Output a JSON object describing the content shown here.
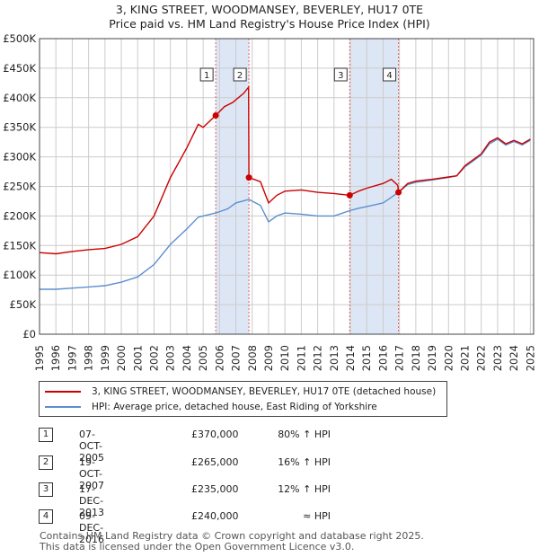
{
  "title_line1": "3, KING STREET, WOODMANSEY, BEVERLEY, HU17 0TE",
  "title_line2": "Price paid vs. HM Land Registry's House Price Index (HPI)",
  "colors": {
    "price": "#cc0000",
    "hpi": "#5b8fcf",
    "shade": "#dde6f5",
    "grid": "#cccccc",
    "vline": "#e06060"
  },
  "chart_data": {
    "type": "line",
    "xlim": [
      1995,
      2025.2
    ],
    "ylim": [
      0,
      500000
    ],
    "yticks": [
      {
        "v": 0,
        "label": "£0"
      },
      {
        "v": 50000,
        "label": "£50K"
      },
      {
        "v": 100000,
        "label": "£100K"
      },
      {
        "v": 150000,
        "label": "£150K"
      },
      {
        "v": 200000,
        "label": "£200K"
      },
      {
        "v": 250000,
        "label": "£250K"
      },
      {
        "v": 300000,
        "label": "£300K"
      },
      {
        "v": 350000,
        "label": "£350K"
      },
      {
        "v": 400000,
        "label": "£400K"
      },
      {
        "v": 450000,
        "label": "£450K"
      },
      {
        "v": 500000,
        "label": "£500K"
      }
    ],
    "xticks": [
      "1995",
      "1996",
      "1997",
      "1998",
      "1999",
      "2000",
      "2001",
      "2002",
      "2003",
      "2004",
      "2005",
      "2006",
      "2007",
      "2008",
      "2009",
      "2010",
      "2011",
      "2012",
      "2013",
      "2014",
      "2015",
      "2016",
      "2017",
      "2018",
      "2019",
      "2020",
      "2021",
      "2022",
      "2023",
      "2024",
      "2025"
    ],
    "series": [
      {
        "name": "3, KING STREET, WOODMANSEY, BEVERLEY, HU17 0TE (detached house)",
        "color": "#cc0000",
        "points": [
          [
            1995,
            138000
          ],
          [
            1996,
            136000
          ],
          [
            1997,
            140000
          ],
          [
            1998,
            143000
          ],
          [
            1999,
            145000
          ],
          [
            2000,
            152000
          ],
          [
            2001,
            165000
          ],
          [
            2002,
            200000
          ],
          [
            2003,
            265000
          ],
          [
            2004,
            315000
          ],
          [
            2004.7,
            355000
          ],
          [
            2005,
            350000
          ],
          [
            2005.77,
            370000
          ],
          [
            2006.3,
            385000
          ],
          [
            2006.8,
            392000
          ],
          [
            2007.5,
            408000
          ],
          [
            2007.78,
            418000
          ],
          [
            2007.8,
            265000
          ],
          [
            2008.5,
            258000
          ],
          [
            2009.0,
            222000
          ],
          [
            2009.5,
            235000
          ],
          [
            2010,
            242000
          ],
          [
            2011,
            244000
          ],
          [
            2012,
            240000
          ],
          [
            2013,
            238000
          ],
          [
            2013.96,
            235000
          ],
          [
            2014.5,
            242000
          ],
          [
            2015,
            247000
          ],
          [
            2016,
            255000
          ],
          [
            2016.5,
            262000
          ],
          [
            2016.9,
            252000
          ],
          [
            2016.94,
            240000
          ],
          [
            2017.5,
            255000
          ],
          [
            2018,
            259000
          ],
          [
            2019,
            262000
          ],
          [
            2020,
            266000
          ],
          [
            2020.5,
            268000
          ],
          [
            2021,
            285000
          ],
          [
            2022,
            305000
          ],
          [
            2022.5,
            325000
          ],
          [
            2023,
            332000
          ],
          [
            2023.5,
            322000
          ],
          [
            2024,
            328000
          ],
          [
            2024.5,
            322000
          ],
          [
            2025,
            330000
          ]
        ]
      },
      {
        "name": "HPI: Average price, detached house, East Riding of Yorkshire",
        "color": "#5b8fcf",
        "points": [
          [
            1995,
            76000
          ],
          [
            1996,
            76000
          ],
          [
            1997,
            78000
          ],
          [
            1998,
            80000
          ],
          [
            1999,
            82000
          ],
          [
            2000,
            88000
          ],
          [
            2001,
            97000
          ],
          [
            2002,
            118000
          ],
          [
            2003,
            152000
          ],
          [
            2004,
            178000
          ],
          [
            2004.7,
            198000
          ],
          [
            2005,
            200000
          ],
          [
            2005.77,
            205000
          ],
          [
            2006.5,
            212000
          ],
          [
            2007,
            222000
          ],
          [
            2007.8,
            228000
          ],
          [
            2008.5,
            218000
          ],
          [
            2009.0,
            190000
          ],
          [
            2009.5,
            200000
          ],
          [
            2010,
            205000
          ],
          [
            2011,
            203000
          ],
          [
            2012,
            200000
          ],
          [
            2013,
            200000
          ],
          [
            2013.96,
            209000
          ],
          [
            2014.5,
            213000
          ],
          [
            2015,
            216000
          ],
          [
            2016,
            222000
          ],
          [
            2016.94,
            240000
          ],
          [
            2017.5,
            253000
          ],
          [
            2018,
            257000
          ],
          [
            2019,
            261000
          ],
          [
            2020,
            265000
          ],
          [
            2020.5,
            268000
          ],
          [
            2021,
            283000
          ],
          [
            2022,
            303000
          ],
          [
            2022.5,
            322000
          ],
          [
            2023,
            330000
          ],
          [
            2023.5,
            320000
          ],
          [
            2024,
            326000
          ],
          [
            2024.5,
            320000
          ],
          [
            2025,
            328000
          ]
        ]
      }
    ],
    "sales": [
      {
        "num": "1",
        "x": 2005.77,
        "y": 370000
      },
      {
        "num": "2",
        "x": 2007.8,
        "y": 265000
      },
      {
        "num": "3",
        "x": 2013.96,
        "y": 235000
      },
      {
        "num": "4",
        "x": 2016.94,
        "y": 240000
      }
    ],
    "shaded": [
      [
        2005.77,
        2007.8
      ],
      [
        2013.96,
        2016.94
      ]
    ]
  },
  "legend": {
    "price": "3, KING STREET, WOODMANSEY, BEVERLEY, HU17 0TE (detached house)",
    "hpi": "HPI: Average price, detached house, East Riding of Yorkshire"
  },
  "transactions": [
    {
      "num": "1",
      "date": "07-OCT-2005",
      "price": "£370,000",
      "hpi": "80% ↑ HPI"
    },
    {
      "num": "2",
      "date": "19-OCT-2007",
      "price": "£265,000",
      "hpi": "16% ↑ HPI"
    },
    {
      "num": "3",
      "date": "17-DEC-2013",
      "price": "£235,000",
      "hpi": "12% ↑ HPI"
    },
    {
      "num": "4",
      "date": "09-DEC-2016",
      "price": "£240,000",
      "hpi": "≈ HPI"
    }
  ],
  "footer_line1": "Contains HM Land Registry data © Crown copyright and database right 2025.",
  "footer_line2": "This data is licensed under the Open Government Licence v3.0."
}
